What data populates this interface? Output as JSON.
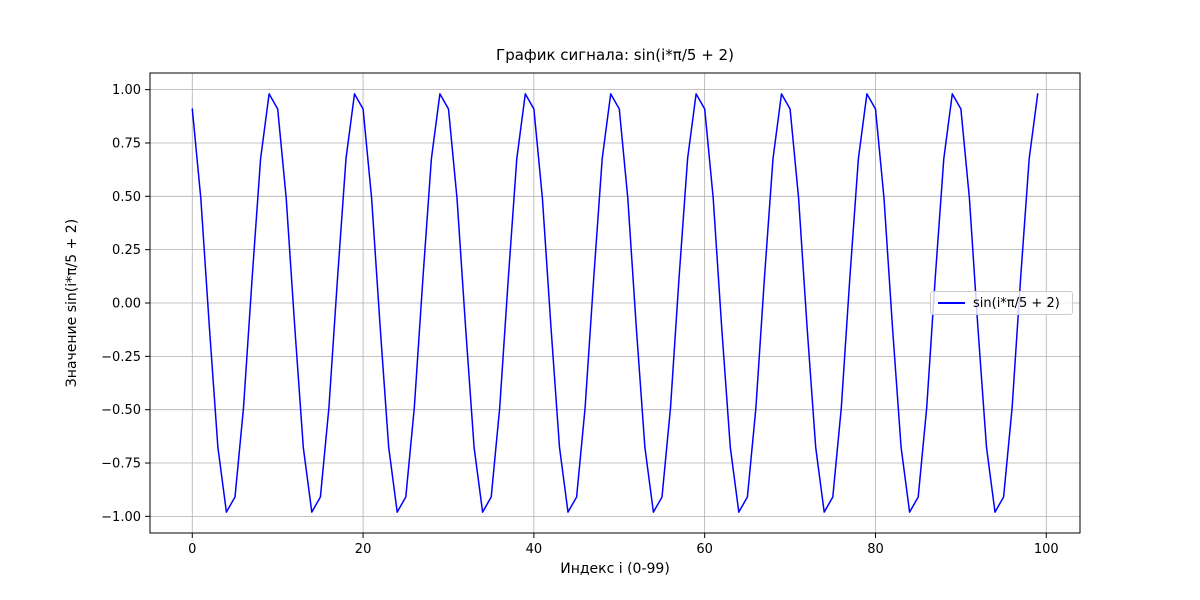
{
  "figure": {
    "background": "#ffffff",
    "text_color": "#000000"
  },
  "chart_data": {
    "type": "line",
    "title": "График сигнала: sin(i*π/5 + 2)",
    "xlabel": "Индекс i (0-99)",
    "ylabel": "Значение sin(i*π/5 + 2)",
    "legend": {
      "label": "sin(i*π/5 + 2)",
      "position": "center right"
    },
    "grid": true,
    "grid_color": "#b0b0b0",
    "spine_color": "#000000",
    "xlim": [
      -4.95,
      103.95
    ],
    "ylim": [
      -1.078,
      1.078
    ],
    "xticks": [
      0,
      20,
      40,
      60,
      80,
      100
    ],
    "yticks": [
      -1.0,
      -0.75,
      -0.5,
      -0.25,
      0.0,
      0.25,
      0.5,
      0.75,
      1.0
    ],
    "x": [
      0,
      1,
      2,
      3,
      4,
      5,
      6,
      7,
      8,
      9,
      10,
      11,
      12,
      13,
      14,
      15,
      16,
      17,
      18,
      19,
      20,
      21,
      22,
      23,
      24,
      25,
      26,
      27,
      28,
      29,
      30,
      31,
      32,
      33,
      34,
      35,
      36,
      37,
      38,
      39,
      40,
      41,
      42,
      43,
      44,
      45,
      46,
      47,
      48,
      49,
      50,
      51,
      52,
      53,
      54,
      55,
      56,
      57,
      58,
      59,
      60,
      61,
      62,
      63,
      64,
      65,
      66,
      67,
      68,
      69,
      70,
      71,
      72,
      73,
      74,
      75,
      76,
      77,
      78,
      79,
      80,
      81,
      82,
      83,
      84,
      85,
      86,
      87,
      88,
      89,
      90,
      91,
      92,
      93,
      94,
      95,
      96,
      97,
      98,
      99
    ],
    "series": [
      {
        "name": "sin(i*π/5 + 2)",
        "color": "#0000ff",
        "line_width": 1.5,
        "values": [
          0.9093,
          0.491,
          -0.1148,
          -0.677,
          -0.9802,
          -0.9093,
          -0.491,
          0.1148,
          0.677,
          0.9802,
          0.9093,
          0.491,
          -0.1148,
          -0.677,
          -0.9802,
          -0.9093,
          -0.491,
          0.1148,
          0.677,
          0.9802,
          0.9093,
          0.491,
          -0.1148,
          -0.677,
          -0.9802,
          -0.9093,
          -0.491,
          0.1148,
          0.677,
          0.9802,
          0.9093,
          0.491,
          -0.1148,
          -0.677,
          -0.9802,
          -0.9093,
          -0.491,
          0.1148,
          0.677,
          0.9802,
          0.9093,
          0.491,
          -0.1148,
          -0.677,
          -0.9802,
          -0.9093,
          -0.491,
          0.1148,
          0.677,
          0.9802,
          0.9093,
          0.491,
          -0.1148,
          -0.677,
          -0.9802,
          -0.9093,
          -0.491,
          0.1148,
          0.677,
          0.9802,
          0.9093,
          0.491,
          -0.1148,
          -0.677,
          -0.9802,
          -0.9093,
          -0.491,
          0.1148,
          0.677,
          0.9802,
          0.9093,
          0.491,
          -0.1148,
          -0.677,
          -0.9802,
          -0.9093,
          -0.491,
          0.1148,
          0.677,
          0.9802,
          0.9093,
          0.491,
          -0.1148,
          -0.677,
          -0.9802,
          -0.9093,
          -0.491,
          0.1148,
          0.677,
          0.9802,
          0.9093,
          0.491,
          -0.1148,
          -0.677,
          -0.9802,
          -0.9093,
          -0.491,
          0.1148,
          0.677,
          0.9802
        ]
      }
    ]
  }
}
